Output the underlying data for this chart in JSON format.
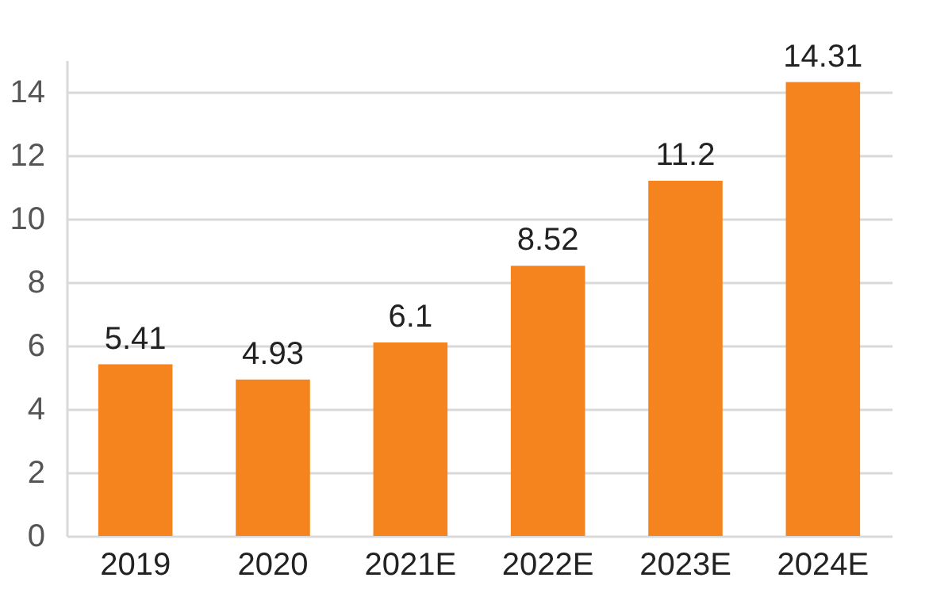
{
  "chart_data": {
    "type": "bar",
    "categories": [
      "2019",
      "2020",
      "2021E",
      "2022E",
      "2023E",
      "2024E"
    ],
    "values": [
      5.41,
      4.93,
      6.1,
      8.52,
      11.2,
      14.31
    ],
    "color": "#f5841f",
    "ylim": [
      0,
      15
    ],
    "yticks": [
      0,
      2,
      4,
      6,
      8,
      10,
      12,
      14
    ],
    "grid": "y",
    "data_labels": true
  }
}
